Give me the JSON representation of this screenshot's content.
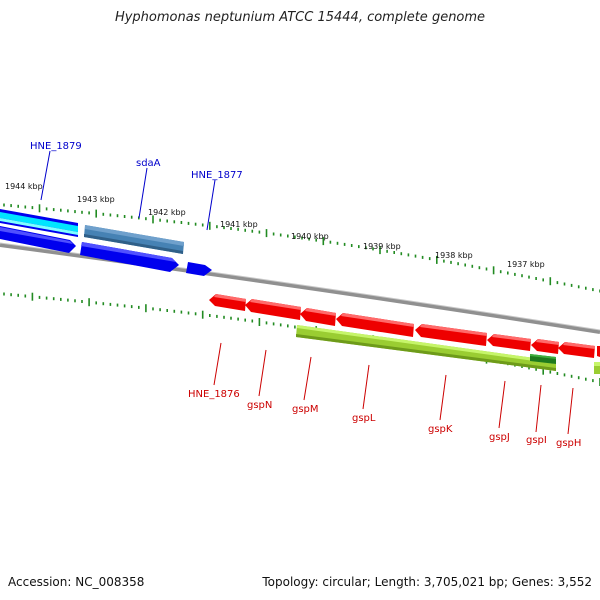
{
  "title": "Hyphomonas neptunium ATCC 15444, complete genome",
  "footer": {
    "accession": "Accession: NC_008358",
    "summary": "Topology: circular; Length: 3,705,021 bp; Genes: 3,552"
  },
  "colors": {
    "blue_gene": "#0000ee",
    "steel_gene": "#4682b4",
    "red_gene": "#ee0000",
    "lime_gene": "#adff2f",
    "dark_green_gene": "#228b22",
    "cyan_gene": "#00ffff",
    "tick_green": "#228b22",
    "backbone_gray": "#808080",
    "label_blue": "#0000cc",
    "label_red": "#cc0000"
  },
  "kbp_labels": [
    "1944 kbp",
    "1943 kbp",
    "1942 kbp",
    "1941 kbp",
    "1940 kbp",
    "1939 kbp",
    "1938 kbp",
    "1937 kbp"
  ],
  "upper_genes": [
    {
      "label": "HNE_1879",
      "color": "blue"
    },
    {
      "label": "sdaA",
      "color": "blue"
    },
    {
      "label": "HNE_1877",
      "color": "blue"
    }
  ],
  "lower_genes": [
    {
      "label": "HNE_1876",
      "color": "red"
    },
    {
      "label": "gspN",
      "color": "red"
    },
    {
      "label": "gspM",
      "color": "red"
    },
    {
      "label": "gspL",
      "color": "red"
    },
    {
      "label": "gspK",
      "color": "red"
    },
    {
      "label": "gspJ",
      "color": "red"
    },
    {
      "label": "gspI",
      "color": "red"
    },
    {
      "label": "gspH",
      "color": "red"
    }
  ]
}
